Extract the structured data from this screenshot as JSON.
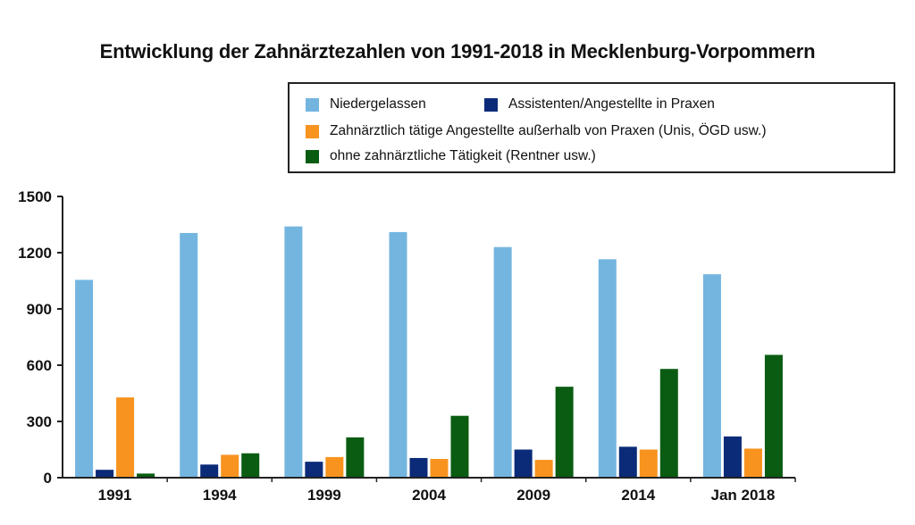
{
  "chart_data": {
    "type": "bar",
    "title": "Entwicklung der Zahnärztezahlen von 1991-2018 in Mecklenburg-Vorpommern",
    "xlabel": "",
    "ylabel": "",
    "ylim": [
      0,
      1500
    ],
    "yticks": [
      "0",
      "300",
      "600",
      "900",
      "1200",
      "1500"
    ],
    "categories": [
      "1991",
      "1994",
      "1999",
      "2004",
      "2009",
      "2014",
      "Jan 2018"
    ],
    "series": [
      {
        "name": "Niedergelassen",
        "color": "#74b5e0",
        "values": [
          1055,
          1305,
          1340,
          1310,
          1230,
          1165,
          1085
        ]
      },
      {
        "name": "Assistenten/Angestellte in Praxen",
        "color": "#0b2a78",
        "values": [
          42,
          70,
          85,
          105,
          150,
          165,
          220
        ]
      },
      {
        "name": "Zahnärztlich tätige Angestellte außerhalb von Praxen (Unis, ÖGD usw.)",
        "color": "#f7931e",
        "values": [
          428,
          122,
          110,
          100,
          95,
          150,
          155
        ]
      },
      {
        "name": "ohne zahnärztliche Tätigkeit (Rentner usw.)",
        "color": "#0a5c12",
        "values": [
          22,
          130,
          215,
          330,
          485,
          580,
          655
        ]
      }
    ],
    "grid": false,
    "legend_position": "top-right"
  }
}
